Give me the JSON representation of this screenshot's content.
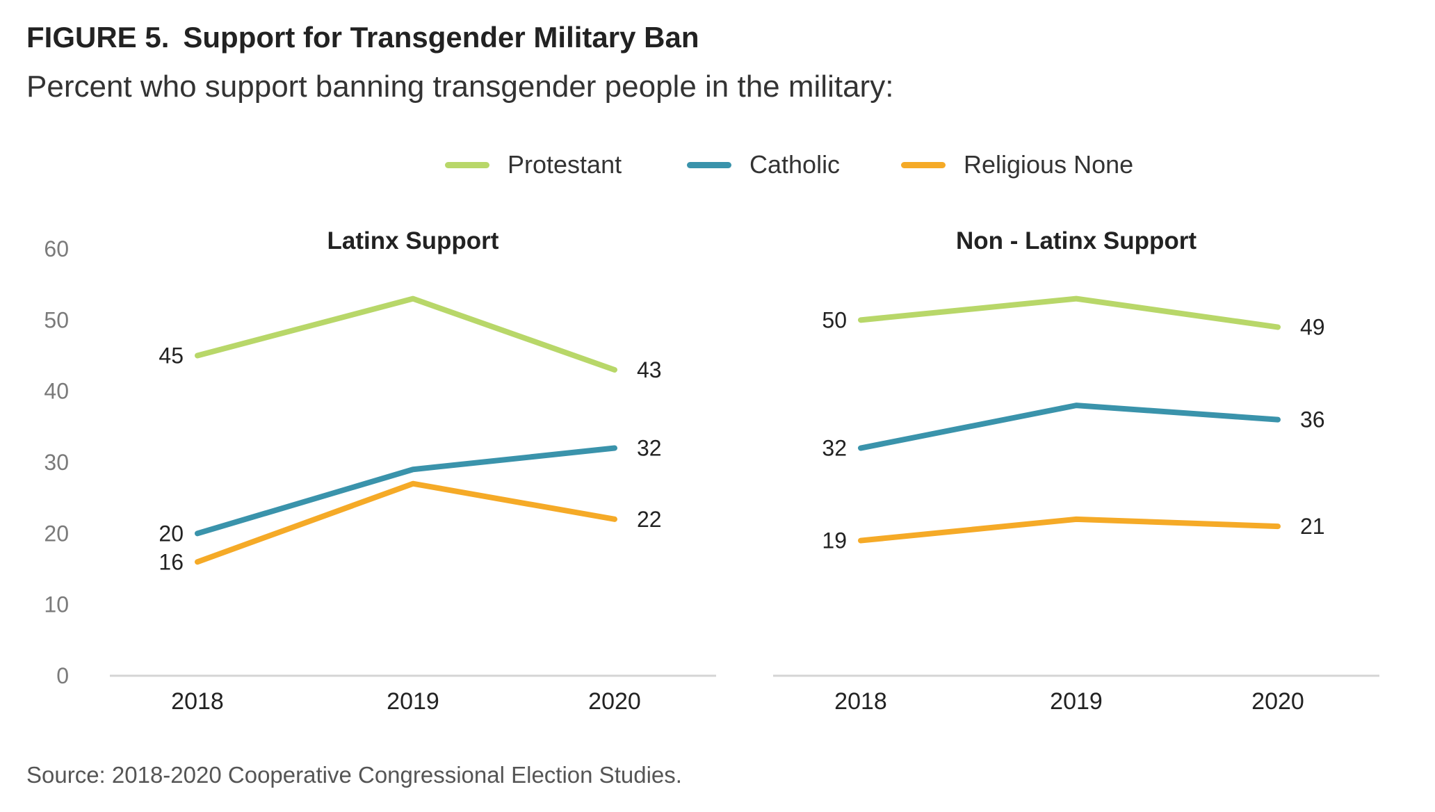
{
  "figure": {
    "number": "FIGURE 5.",
    "title": "Support for Transgender Military Ban",
    "subtitle": "Percent who support banning transgender people in the military:",
    "source": "Source: 2018-2020 Cooperative Congressional Election Studies."
  },
  "legend": [
    {
      "name": "Protestant",
      "color": "#b8d769"
    },
    {
      "name": "Catholic",
      "color": "#3a93ab"
    },
    {
      "name": "Religious None",
      "color": "#f5aa27"
    }
  ],
  "chart_data": [
    {
      "type": "line",
      "title": "Latinx Support",
      "x": [
        "2018",
        "2019",
        "2020"
      ],
      "ylim": [
        0,
        60
      ],
      "yticks": [
        0,
        10,
        20,
        30,
        40,
        50,
        60
      ],
      "grid": false,
      "legend": "top-center",
      "series": [
        {
          "name": "Protestant",
          "values": [
            45,
            53,
            43
          ],
          "labels": [
            "45",
            "",
            "43"
          ]
        },
        {
          "name": "Catholic",
          "values": [
            20,
            29,
            32
          ],
          "labels": [
            "20",
            "",
            "32"
          ]
        },
        {
          "name": "Religious None",
          "values": [
            16,
            27,
            22
          ],
          "labels": [
            "16",
            "",
            "22"
          ]
        }
      ]
    },
    {
      "type": "line",
      "title": "Non - Latinx Support",
      "x": [
        "2018",
        "2019",
        "2020"
      ],
      "ylim": [
        0,
        60
      ],
      "grid": false,
      "legend": "top-center",
      "series": [
        {
          "name": "Protestant",
          "values": [
            50,
            53,
            49
          ],
          "labels": [
            "50",
            "",
            "49"
          ]
        },
        {
          "name": "Catholic",
          "values": [
            32,
            38,
            36
          ],
          "labels": [
            "32",
            "",
            "36"
          ]
        },
        {
          "name": "Religious None",
          "values": [
            19,
            22,
            21
          ],
          "labels": [
            "19",
            "",
            "21"
          ]
        }
      ]
    }
  ]
}
